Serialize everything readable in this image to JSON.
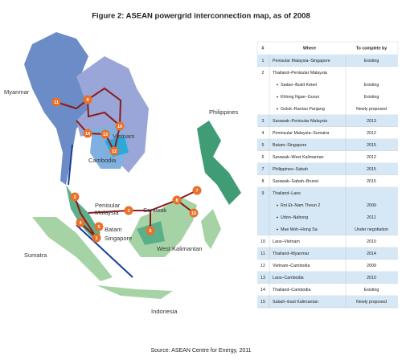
{
  "title": "Figure 2: ASEAN powergrid interconnection map, as of 2008",
  "map": {
    "labels": [
      "Myanmar",
      "Vietnam",
      "Cambodia",
      "Philippines",
      "Penisular",
      "Malaysia",
      "Sarawak",
      "Batam",
      "Singapore",
      "Sumatra",
      "West Kalimantan",
      "Indonesia"
    ],
    "markers": [
      "1",
      "2",
      "3",
      "4",
      "5",
      "6",
      "7",
      "8",
      "9",
      "10",
      "11",
      "12",
      "13",
      "14",
      "15"
    ]
  },
  "table": {
    "header": [
      "#",
      "Where",
      "To complete by"
    ],
    "rows": [
      {
        "num": "1",
        "where": "Penisular Malaysia–Singapore",
        "complete": "Existing"
      },
      {
        "num": "2",
        "where": "Thailand–Penisular Malaysia",
        "items": [
          {
            "where": "Sadao–Bukit Keteri",
            "complete": "Existing"
          },
          {
            "where": "Khlong Ngae–Gurun",
            "complete": "Existing"
          },
          {
            "where": "Golok–Rantau Panjang",
            "complete": "Newly proposed"
          }
        ]
      },
      {
        "num": "3",
        "where": "Sarawak–Penisular Malaysia",
        "complete": "2013"
      },
      {
        "num": "4",
        "where": "Peninsular Malaysia–Sumatra",
        "complete": "2012"
      },
      {
        "num": "5",
        "where": "Batam–Singapore",
        "complete": "2015"
      },
      {
        "num": "6",
        "where": "Sarawak–West Kalimantan",
        "complete": "2012"
      },
      {
        "num": "7",
        "where": "Philippines–Sabah",
        "complete": "2015"
      },
      {
        "num": "8",
        "where": "Sarawak–Sabah–Brunei",
        "complete": "2015"
      },
      {
        "num": "9",
        "where": "Thailand–Laos",
        "items": [
          {
            "where": "Roi Et–Nam Theun 2",
            "complete": "2009"
          },
          {
            "where": "Udon–Nabong",
            "complete": "2011"
          },
          {
            "where": "Mae Moh–Hong Sa",
            "complete": "Under negotiation"
          }
        ]
      },
      {
        "num": "10",
        "where": "Laos–Vietnam",
        "complete": "2010"
      },
      {
        "num": "11",
        "where": "Thailand–Myanmar",
        "complete": "2014"
      },
      {
        "num": "12",
        "where": "Vietnam–Cambodia",
        "complete": "2009"
      },
      {
        "num": "13",
        "where": "Laos–Cambodia",
        "complete": "2010"
      },
      {
        "num": "14",
        "where": "Thailand–Cambodia",
        "complete": "Existing"
      },
      {
        "num": "15",
        "where": "Sabah–East Kalimantan",
        "complete": "Newly proposed"
      }
    ]
  },
  "source": "Source: ASEAN Centre for Energy, 2011"
}
